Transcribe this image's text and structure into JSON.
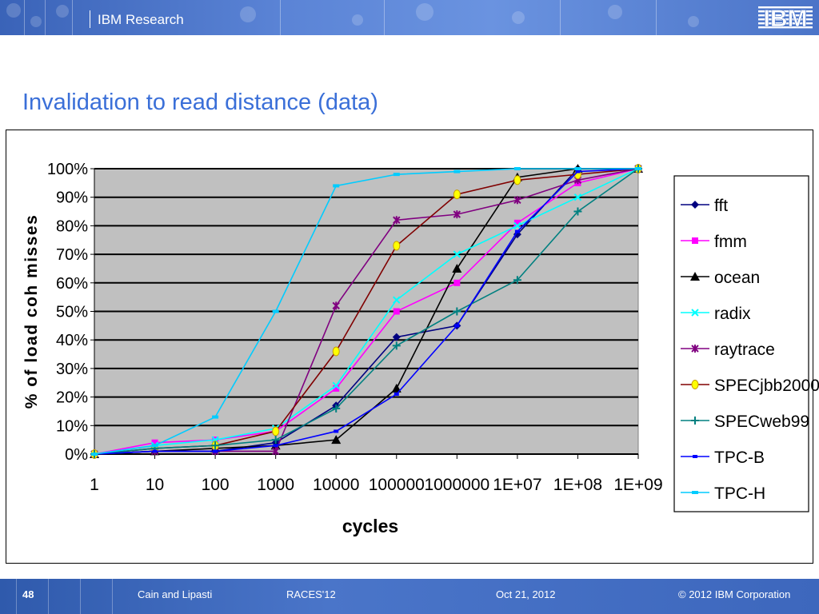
{
  "header": {
    "title": "IBM Research",
    "logo_text": "IBM"
  },
  "slide": {
    "title": "Invalidation to read distance (data)"
  },
  "footer": {
    "page_number": "48",
    "authors": "Cain and Lipasti",
    "conference": "RACES'12",
    "date": "Oct 21, 2012",
    "copyright": "© 2012 IBM Corporation"
  },
  "colors": {
    "header_bg": "#4f78cc",
    "title_blue": "#3a6fd8",
    "plot_bg": "#c0c0c0"
  },
  "chart_data": {
    "type": "line",
    "title": "",
    "xlabel": "cycles",
    "ylabel": "% of load coh misses",
    "x": [
      "1",
      "10",
      "100",
      "1000",
      "10000",
      "100000",
      "1000000",
      "1E+07",
      "1E+08",
      "1E+09"
    ],
    "yticks": [
      "0%",
      "10%",
      "20%",
      "30%",
      "40%",
      "50%",
      "60%",
      "70%",
      "80%",
      "90%",
      "100%"
    ],
    "ylim": [
      0,
      100
    ],
    "grid": "horizontal",
    "legend": "right",
    "series": [
      {
        "name": "fft",
        "color": "#000080",
        "marker": "diamond",
        "values": [
          0,
          1,
          1,
          4,
          17,
          41,
          45,
          77,
          100,
          100
        ]
      },
      {
        "name": "fmm",
        "color": "#ff00ff",
        "marker": "square",
        "values": [
          0,
          4,
          5,
          8,
          23,
          50,
          60,
          81,
          95,
          100
        ]
      },
      {
        "name": "ocean",
        "color": "#000000",
        "marker": "triangle",
        "values": [
          0,
          1,
          2,
          3,
          5,
          23,
          65,
          97,
          100,
          100
        ]
      },
      {
        "name": "radix",
        "color": "#00ffff",
        "marker": "x",
        "values": [
          0,
          3,
          5,
          9,
          24,
          54,
          70,
          80,
          90,
          100
        ]
      },
      {
        "name": "raytrace",
        "color": "#800080",
        "marker": "star",
        "values": [
          0,
          1,
          1,
          1,
          52,
          82,
          84,
          89,
          96,
          100
        ]
      },
      {
        "name": "SPECjbb2000",
        "color": "#800000",
        "marker": "circle",
        "values": [
          0,
          2,
          3,
          8,
          36,
          73,
          91,
          96,
          98,
          100
        ]
      },
      {
        "name": "SPECweb99",
        "color": "#008080",
        "marker": "plus",
        "values": [
          0,
          2,
          3,
          5,
          16,
          38,
          50,
          61,
          85,
          100
        ]
      },
      {
        "name": "TPC-B",
        "color": "#0000ff",
        "marker": "dash",
        "values": [
          0,
          1,
          1,
          3,
          8,
          21,
          45,
          78,
          99,
          100
        ]
      },
      {
        "name": "TPC-H",
        "color": "#00ccff",
        "marker": "bar",
        "values": [
          0,
          3,
          13,
          50,
          94,
          98,
          99,
          100,
          100,
          100
        ]
      }
    ]
  }
}
